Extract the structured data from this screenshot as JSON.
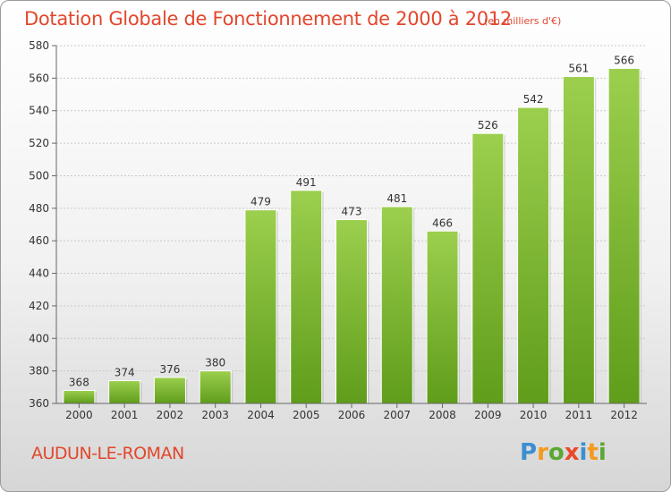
{
  "header": {
    "title": "Dotation Globale de Fonctionnement de 2000 à 2012",
    "subtitle": "(en milliers d'€)"
  },
  "footer": {
    "city": "AUDUN-LE-ROMAN",
    "logo_letters": [
      "P",
      "r",
      "o",
      "x",
      "i",
      "t",
      "i"
    ],
    "logo_colors": [
      "#3a8fd0",
      "#f39a1f",
      "#5aa834",
      "#e94a2b",
      "#3a8fd0",
      "#f39a1f",
      "#5aa834"
    ]
  },
  "chart_data": {
    "type": "bar",
    "title": "Dotation Globale de Fonctionnement de 2000 à 2012",
    "subtitle": "(en milliers d'€)",
    "xlabel": "",
    "ylabel": "",
    "categories": [
      "2000",
      "2001",
      "2002",
      "2003",
      "2004",
      "2005",
      "2006",
      "2007",
      "2008",
      "2009",
      "2010",
      "2011",
      "2012"
    ],
    "values": [
      368,
      374,
      376,
      380,
      479,
      491,
      473,
      481,
      466,
      526,
      542,
      561,
      566
    ],
    "ylim": [
      360,
      580
    ],
    "yticks": [
      360,
      380,
      400,
      420,
      440,
      460,
      480,
      500,
      520,
      540,
      560,
      580
    ],
    "grid": "horizontal dashed",
    "bar_color": "#7cbf2f",
    "bar_color_light": "#9ccf4e",
    "bar_color_dark": "#5f9d1a",
    "legend": "none"
  }
}
